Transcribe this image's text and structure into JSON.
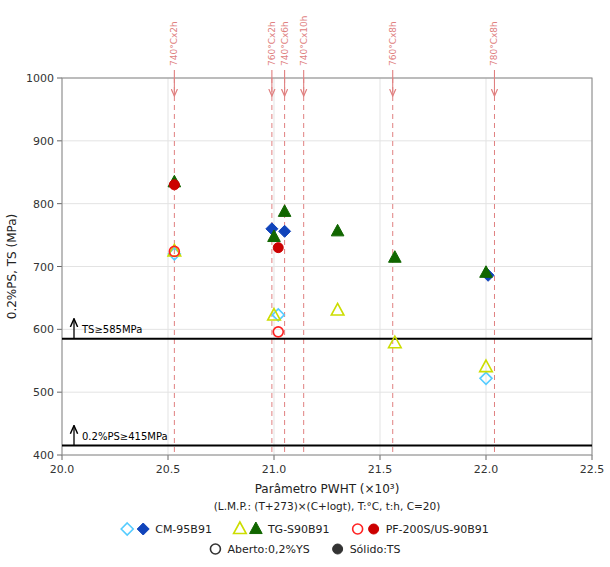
{
  "chart_data": {
    "type": "scatter",
    "xlabel": [
      "Parâmetro PWHT (×10³)",
      "(L.M.P.: (T+273)×(C+logt), T:°C, t:h, C=20)"
    ],
    "ylabel": "0.2%PS, TS (MPa)",
    "xlim": [
      20.0,
      22.5
    ],
    "ylim": [
      400,
      1000
    ],
    "xticks": [
      {
        "value": 20.0,
        "label": "20.0"
      },
      20.5,
      {
        "value": 21.0,
        "label": "21.0"
      },
      21.5,
      {
        "value": 22.0,
        "label": "22.0"
      },
      22.5
    ],
    "yticks": [
      400,
      500,
      600,
      700,
      800,
      900,
      1000
    ],
    "grid": true,
    "legend": "bottom",
    "annotations": [
      "Aberto:0,2%YS",
      "Sólido:TS"
    ],
    "hlines": [
      {
        "y": 585,
        "label": "TS≥585MPa"
      },
      {
        "y": 415,
        "label": "0.2%PS≥415MPa"
      }
    ],
    "vlines": [
      {
        "x": 20.53,
        "label": "740°Cx2h",
        "color": "#e08080"
      },
      {
        "x": 20.99,
        "label": "760°Cx2h",
        "color": "#e08080"
      },
      {
        "x": 21.05,
        "label": "740°Cx6h",
        "color": "#e08080"
      },
      {
        "x": 21.14,
        "label": "740°Cx10h",
        "color": "#e08080"
      },
      {
        "x": 21.56,
        "label": "760°Cx8h",
        "color": "#e08080"
      },
      {
        "x": 22.04,
        "label": "780°Cx8h",
        "color": "#e08080"
      }
    ],
    "series": [
      {
        "name": "CM-95B91",
        "marker": "diamond-open",
        "color": "#55ccff",
        "x": [
          20.53,
          21.02,
          22.0
        ],
        "values": [
          720,
          623,
          522
        ]
      },
      {
        "name": "CM-95B91",
        "marker": "diamond",
        "color": "#1144bb",
        "x": [
          20.99,
          21.05,
          22.01
        ],
        "values": [
          760,
          756,
          686
        ]
      },
      {
        "name": "TG-S90B91",
        "marker": "triangle-open",
        "color": "#ccdd00",
        "x": [
          20.53,
          21.0,
          21.3,
          21.57,
          22.0
        ],
        "values": [
          724,
          622,
          630,
          578,
          540
        ]
      },
      {
        "name": "TG-S90B91",
        "marker": "triangle",
        "color": "#116600",
        "x": [
          20.53,
          21.0,
          21.05,
          21.3,
          21.57,
          22.0
        ],
        "values": [
          834,
          747,
          787,
          756,
          714,
          690
        ]
      },
      {
        "name": "PF-200S/US-90B91",
        "marker": "circle-open",
        "color": "#ff2222",
        "x": [
          20.53,
          21.02
        ],
        "values": [
          724,
          596
        ]
      },
      {
        "name": "PF-200S/US-90B91",
        "marker": "circle",
        "color": "#cc0000",
        "x": [
          20.53,
          21.02
        ],
        "values": [
          830,
          730
        ]
      }
    ]
  }
}
